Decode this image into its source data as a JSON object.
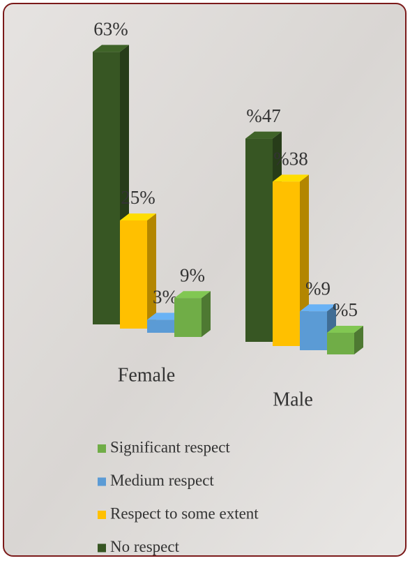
{
  "chart_data": {
    "type": "bar3d",
    "categories": [
      "Female",
      "Male"
    ],
    "series": [
      {
        "name": "No respect",
        "color": "#375623",
        "values": [
          63,
          47
        ],
        "value_labels": [
          "63%",
          "%47"
        ]
      },
      {
        "name": "Respect to some extent",
        "color": "#ffc000",
        "values": [
          25,
          38
        ],
        "value_labels": [
          "25%",
          "%38"
        ]
      },
      {
        "name": "Medium respect",
        "color": "#5b9bd5",
        "values": [
          3,
          9
        ],
        "value_labels": [
          "3%",
          "%9"
        ]
      },
      {
        "name": "Significant respect",
        "color": "#70ad47",
        "values": [
          9,
          5
        ],
        "value_labels": [
          "9%",
          "%5"
        ]
      }
    ]
  }
}
